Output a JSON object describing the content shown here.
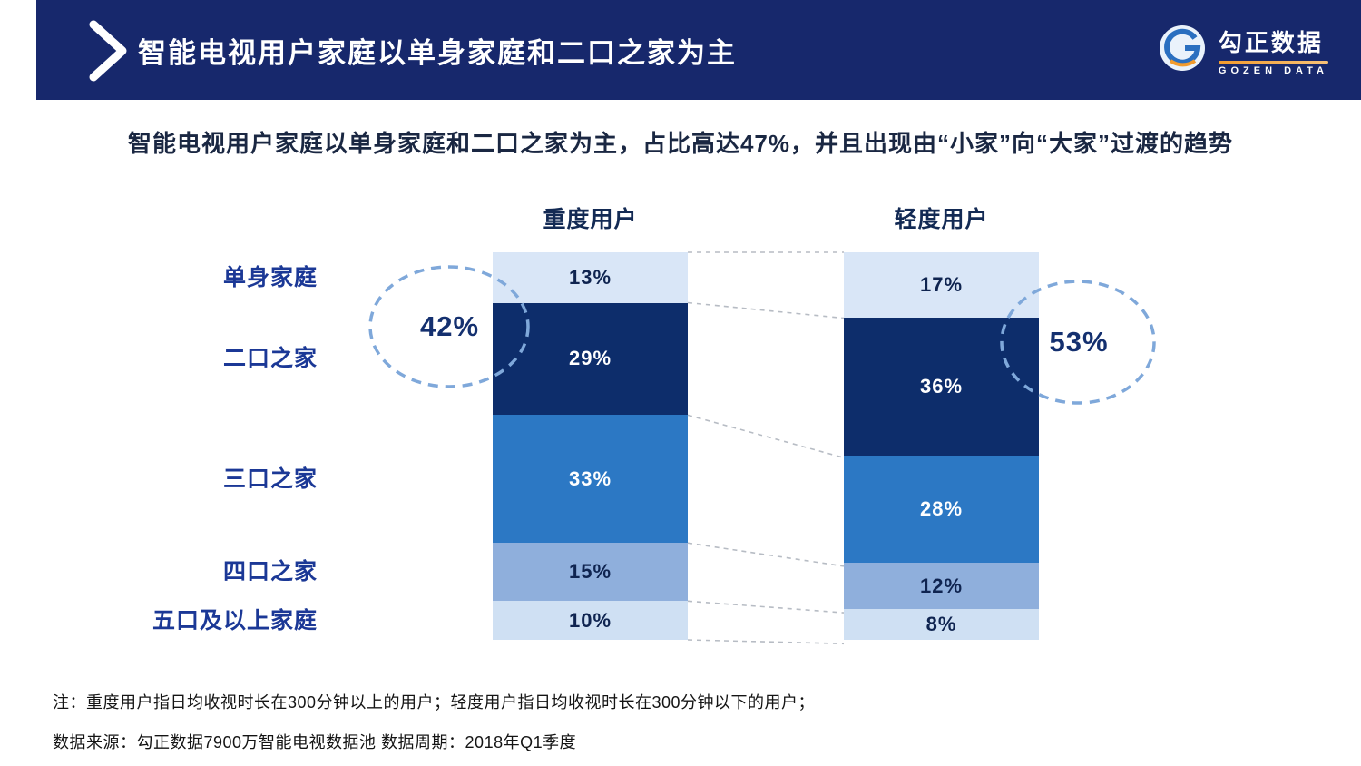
{
  "header": {
    "title": "智能电视用户家庭以单身家庭和二口之家为主",
    "logo": {
      "name": "勾正数据",
      "tagline": "GOZEN DATA"
    }
  },
  "subtitle": "智能电视用户家庭以单身家庭和二口之家为主，占比高达47%，并且出现由“小家”向“大家”过渡的趋势",
  "chart_data": {
    "type": "bar",
    "variant": "stacked-100-percent",
    "categories": [
      "单身家庭",
      "二口之家",
      "三口之家",
      "四口之家",
      "五口及以上家庭"
    ],
    "series": [
      {
        "name": "重度用户",
        "values": [
          13,
          29,
          33,
          15,
          10
        ]
      },
      {
        "name": "轻度用户",
        "values": [
          17,
          36,
          28,
          12,
          8
        ]
      }
    ],
    "value_suffix": "%",
    "annotations": [
      {
        "label": "42%",
        "side": "left"
      },
      {
        "label": "53%",
        "side": "right"
      }
    ],
    "colors": [
      "#d9e6f7",
      "#0d2d6b",
      "#2c78c4",
      "#8fafdc",
      "#cfe0f3"
    ],
    "segment_text_colors": [
      "#0f2450",
      "#ffffff",
      "#ffffff",
      "#0f2450",
      "#0f2450"
    ],
    "accent_colors": {
      "header_band": "#17286c",
      "category_label": "#1b3896",
      "annotation_stroke": "#7fa8da",
      "connector": "#b7bcc4",
      "logo_orange": "#f29b2d"
    },
    "legend_position": "none",
    "grid": false,
    "ylim": [
      0,
      100
    ]
  },
  "notes": [
    "注：重度用户指日均收视时长在300分钟以上的用户；轻度用户指日均收视时长在300分钟以下的用户；",
    "数据来源：勾正数据7900万智能电视数据池  数据周期：2018年Q1季度"
  ]
}
